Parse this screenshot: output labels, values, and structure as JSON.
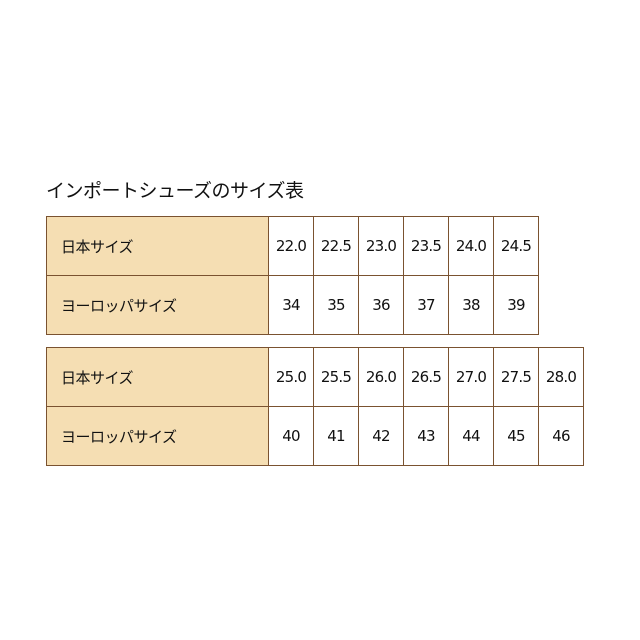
{
  "title": "インポートシューズのサイズ表",
  "colors": {
    "header_bg": "#f5deb3",
    "border": "#7a5230"
  },
  "tables": [
    {
      "rows": [
        {
          "label": "日本サイズ",
          "values": [
            "22.0",
            "22.5",
            "23.0",
            "23.5",
            "24.0",
            "24.5"
          ]
        },
        {
          "label": "ヨーロッパサイズ",
          "values": [
            "34",
            "35",
            "36",
            "37",
            "38",
            "39"
          ]
        }
      ]
    },
    {
      "rows": [
        {
          "label": "日本サイズ",
          "values": [
            "25.0",
            "25.5",
            "26.0",
            "26.5",
            "27.0",
            "27.5",
            "28.0"
          ]
        },
        {
          "label": "ヨーロッパサイズ",
          "values": [
            "40",
            "41",
            "42",
            "43",
            "44",
            "45",
            "46"
          ]
        }
      ]
    }
  ]
}
